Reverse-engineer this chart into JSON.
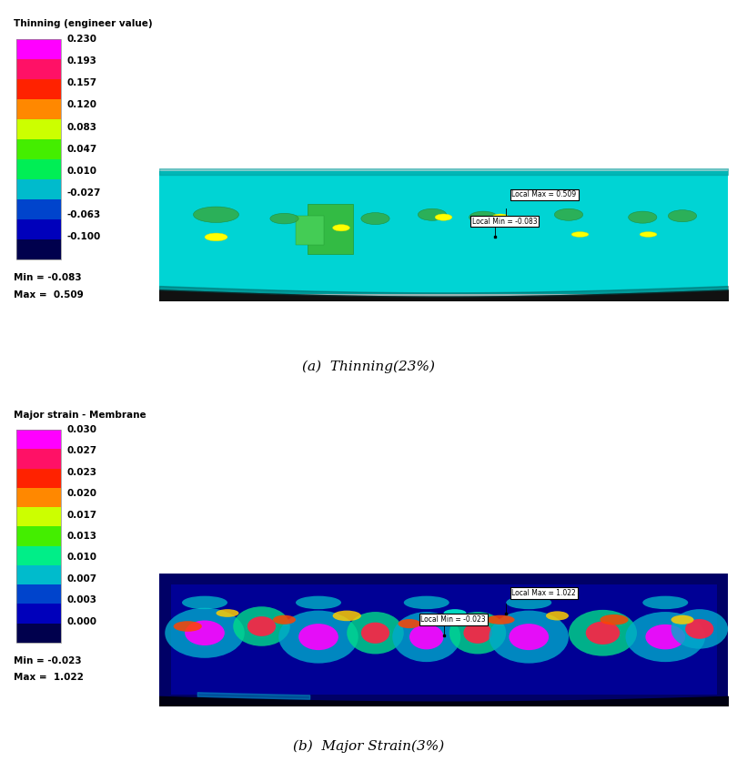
{
  "fig_width": 8.1,
  "fig_height": 8.59,
  "bg_color": "#ffffff",
  "panel_a": {
    "title": "Thinning (engineer value)",
    "caption": "(a)  Thinning(23%)",
    "colorbar_labels": [
      "0.230",
      "0.193",
      "0.157",
      "0.120",
      "0.083",
      "0.047",
      "0.010",
      "-0.027",
      "-0.063",
      "-0.100"
    ],
    "colorbar_colors": [
      "#ff00ff",
      "#ff1166",
      "#ff2200",
      "#ff8800",
      "#ccff00",
      "#44ee00",
      "#00ee55",
      "#00bbcc",
      "#0044cc",
      "#0000bb",
      "#00004d"
    ],
    "min_label": "Min = -0.083",
    "max_label": "Max =  0.509",
    "local_max_label": "Local Max = 0.509",
    "local_min_label": "Local Min = -0.083"
  },
  "panel_b": {
    "title": "Major strain - Membrane",
    "caption": "(b)  Major Strain(3%)",
    "colorbar_labels": [
      "0.030",
      "0.027",
      "0.023",
      "0.020",
      "0.017",
      "0.013",
      "0.010",
      "0.007",
      "0.003",
      "0.000"
    ],
    "colorbar_colors": [
      "#ff00ff",
      "#ff1166",
      "#ff2200",
      "#ff8800",
      "#ccff00",
      "#44ee00",
      "#00ee88",
      "#00bbcc",
      "#0044cc",
      "#0000bb",
      "#00004d"
    ],
    "min_label": "Min = -0.023",
    "max_label": "Max =  1.022",
    "local_max_label": "Local Max = 1.022",
    "local_min_label": "Local Min = -0.023"
  }
}
